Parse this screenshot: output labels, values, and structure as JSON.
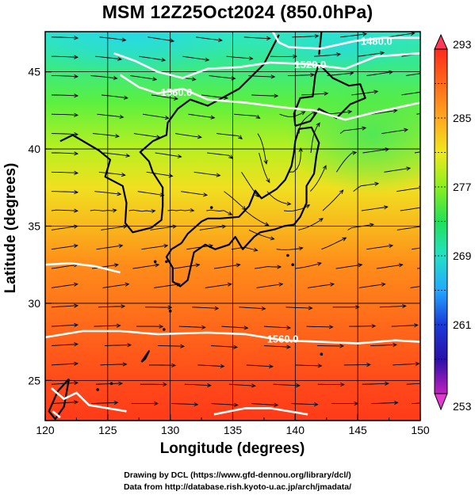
{
  "title": "MSM 12Z25Oct2024 (850.0hPa)",
  "xlabel": "Longitude (degrees)",
  "ylabel": "Latitude  (degrees)",
  "credits": {
    "line1": "Drawing by DCL (https://www.gfd-dennou.org/library/dcl/)",
    "line2": "Data from http://database.rish.kyoto-u.ac.jp/arch/jmadata/"
  },
  "map": {
    "lon_range": [
      120,
      150
    ],
    "lat_range": [
      22.4,
      47.6
    ],
    "lon_ticks": [
      "120",
      "125",
      "130",
      "135",
      "140",
      "145",
      "150"
    ],
    "lat_ticks": [
      "25",
      "30",
      "35",
      "40",
      "45"
    ],
    "field": "temperature (K) shading with streamlines",
    "contour_labels": [
      {
        "text": "1480.0",
        "lon": 146.5,
        "lat": 47.0
      },
      {
        "text": "1520.0",
        "lon": 141.2,
        "lat": 45.5
      },
      {
        "text": "1560.0",
        "lon": 130.5,
        "lat": 43.7
      },
      {
        "text": "1560.0",
        "lon": 139.0,
        "lat": 27.7
      }
    ]
  },
  "colorbar": {
    "min": 253,
    "max": 293,
    "tick_labels": [
      "293",
      "285",
      "277",
      "269",
      "261",
      "253"
    ],
    "colors": [
      "#ff3a7a",
      "#ff2a1a",
      "#ff6a1a",
      "#ffa820",
      "#f0e81e",
      "#8af01e",
      "#22e058",
      "#24e0c6",
      "#22a8ff",
      "#1a3ad8",
      "#2a10a8",
      "#9a0aa8",
      "#e03ad0"
    ]
  }
}
